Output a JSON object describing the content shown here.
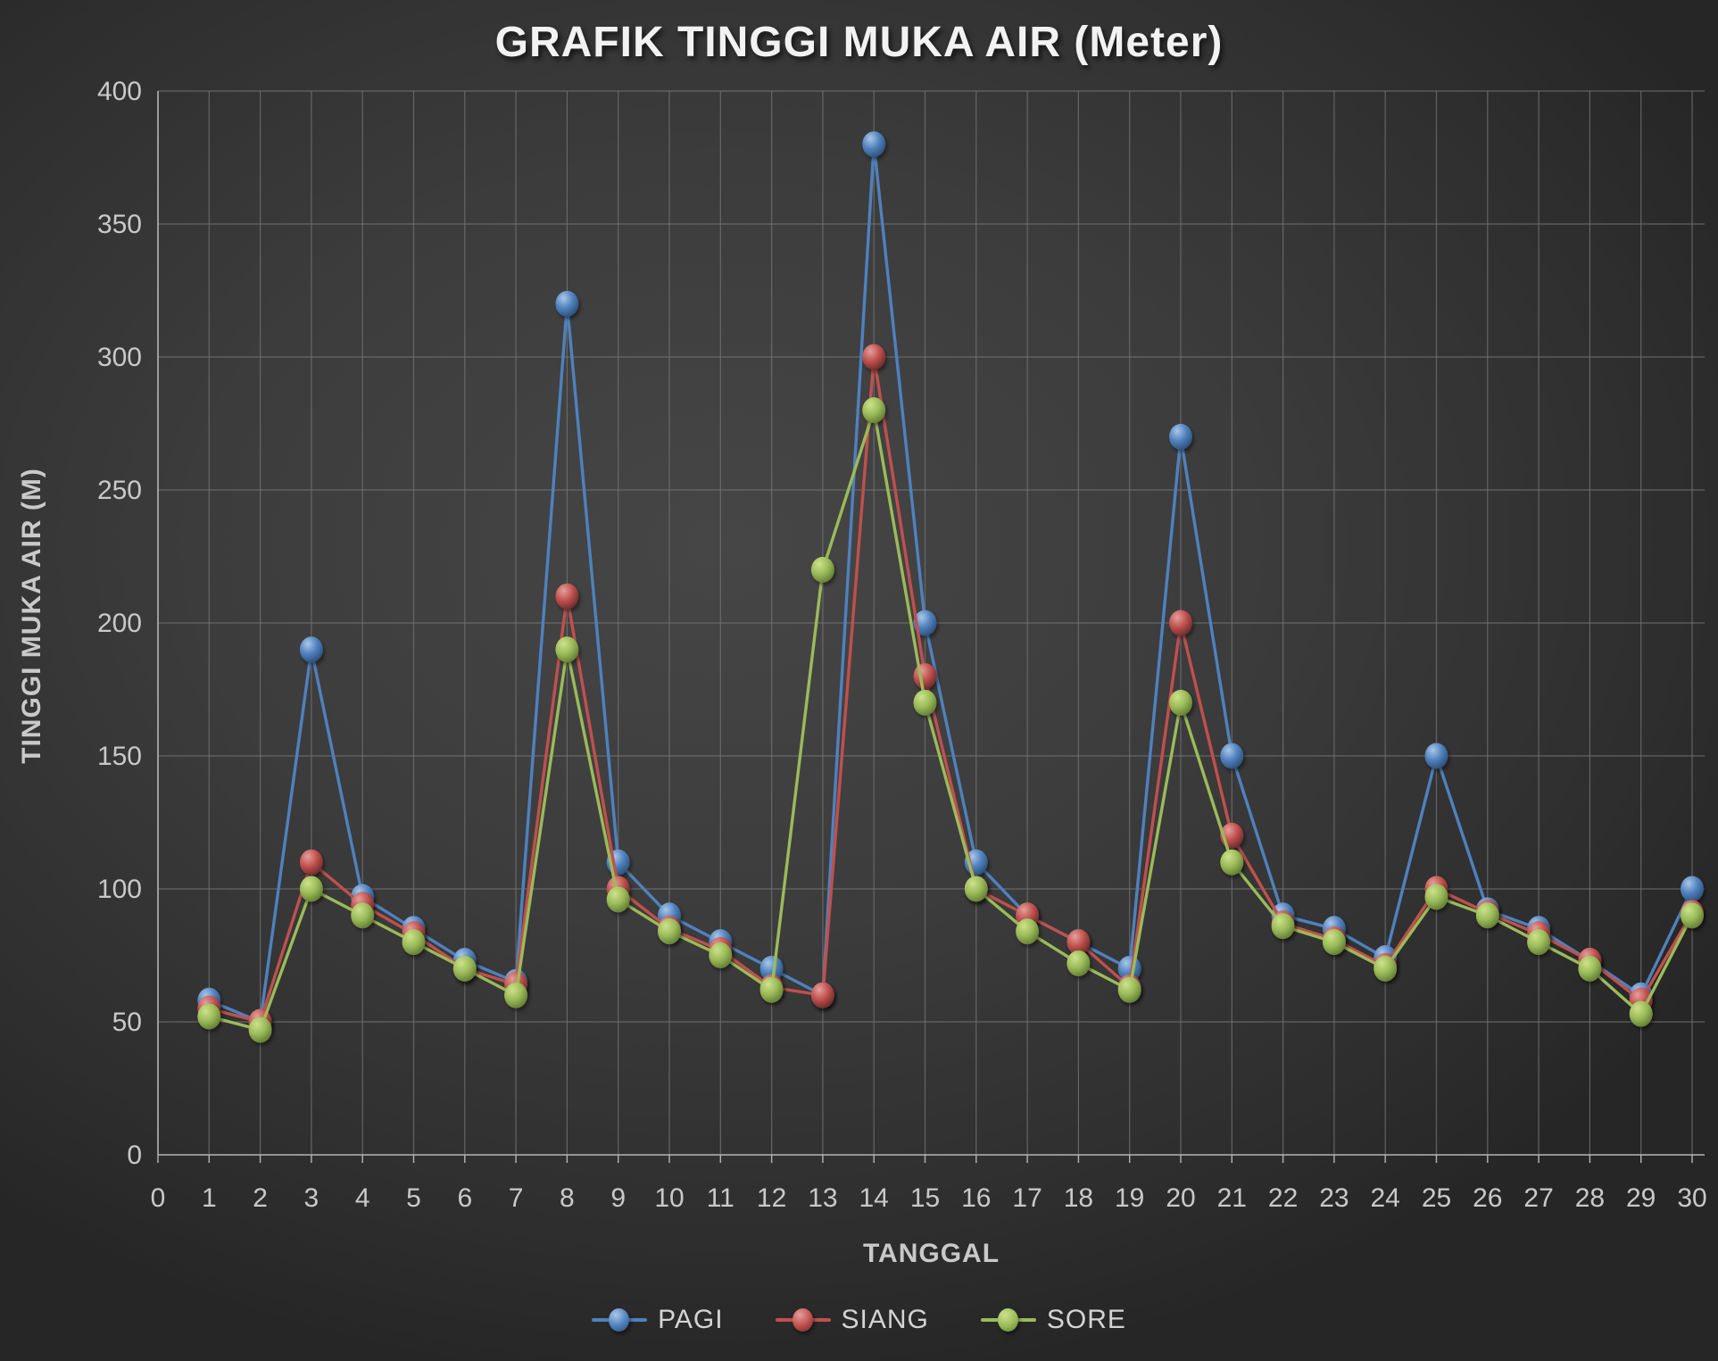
{
  "title": "GRAFIK TINGGI MUKA AIR (Meter)",
  "axes": {
    "x_title": "TANGGAL",
    "y_title": "TINGGI MUKA AIR (M)"
  },
  "theme": {
    "grid_color": "#757575",
    "axis_color": "#b5b5b5",
    "tick_label_color": "#c9c9c9",
    "title_color": "#f2f2f2"
  },
  "chart_data": {
    "type": "line",
    "title": "GRAFIK TINGGI MUKA AIR (Meter)",
    "xlabel": "TANGGAL",
    "ylabel": "TINGGI MUKA AIR (M)",
    "xlim": [
      0,
      30
    ],
    "x_tick_step": 1,
    "ylim": [
      0,
      400
    ],
    "y_tick_step": 50,
    "grid": true,
    "legend_position": "bottom",
    "x": [
      1,
      2,
      3,
      4,
      5,
      6,
      7,
      8,
      9,
      10,
      11,
      12,
      13,
      14,
      15,
      16,
      17,
      18,
      19,
      20,
      21,
      22,
      23,
      24,
      25,
      26,
      27,
      28,
      29,
      30
    ],
    "series": [
      {
        "name": "PAGI",
        "color": "#4F81BD",
        "marker_light": "#a9c7e9",
        "marker_dark": "#2a4a70",
        "values": [
          58,
          50,
          190,
          97,
          85,
          73,
          65,
          320,
          110,
          90,
          80,
          70,
          60,
          380,
          200,
          110,
          90,
          80,
          70,
          270,
          150,
          90,
          85,
          74,
          150,
          92,
          85,
          73,
          60,
          100
        ]
      },
      {
        "name": "SIANG",
        "color": "#C0504D",
        "marker_light": "#e59f9c",
        "marker_dark": "#75ityty",
        "values": [
          55,
          50,
          110,
          94,
          83,
          70,
          64,
          210,
          100,
          85,
          77,
          63,
          60,
          300,
          180,
          100,
          90,
          80,
          63,
          200,
          120,
          87,
          81,
          71,
          100,
          91,
          83,
          73,
          58,
          91
        ]
      },
      {
        "name": "SORE",
        "color": "#9BBB59",
        "marker_light": "#cde28b",
        "marker_dark": "#5c7530",
        "values": [
          52,
          47,
          100,
          90,
          80,
          70,
          60,
          190,
          96,
          84,
          75,
          62,
          220,
          280,
          170,
          100,
          84,
          72,
          62,
          170,
          110,
          86,
          80,
          70,
          97,
          90,
          80,
          70,
          53,
          90
        ]
      }
    ]
  }
}
